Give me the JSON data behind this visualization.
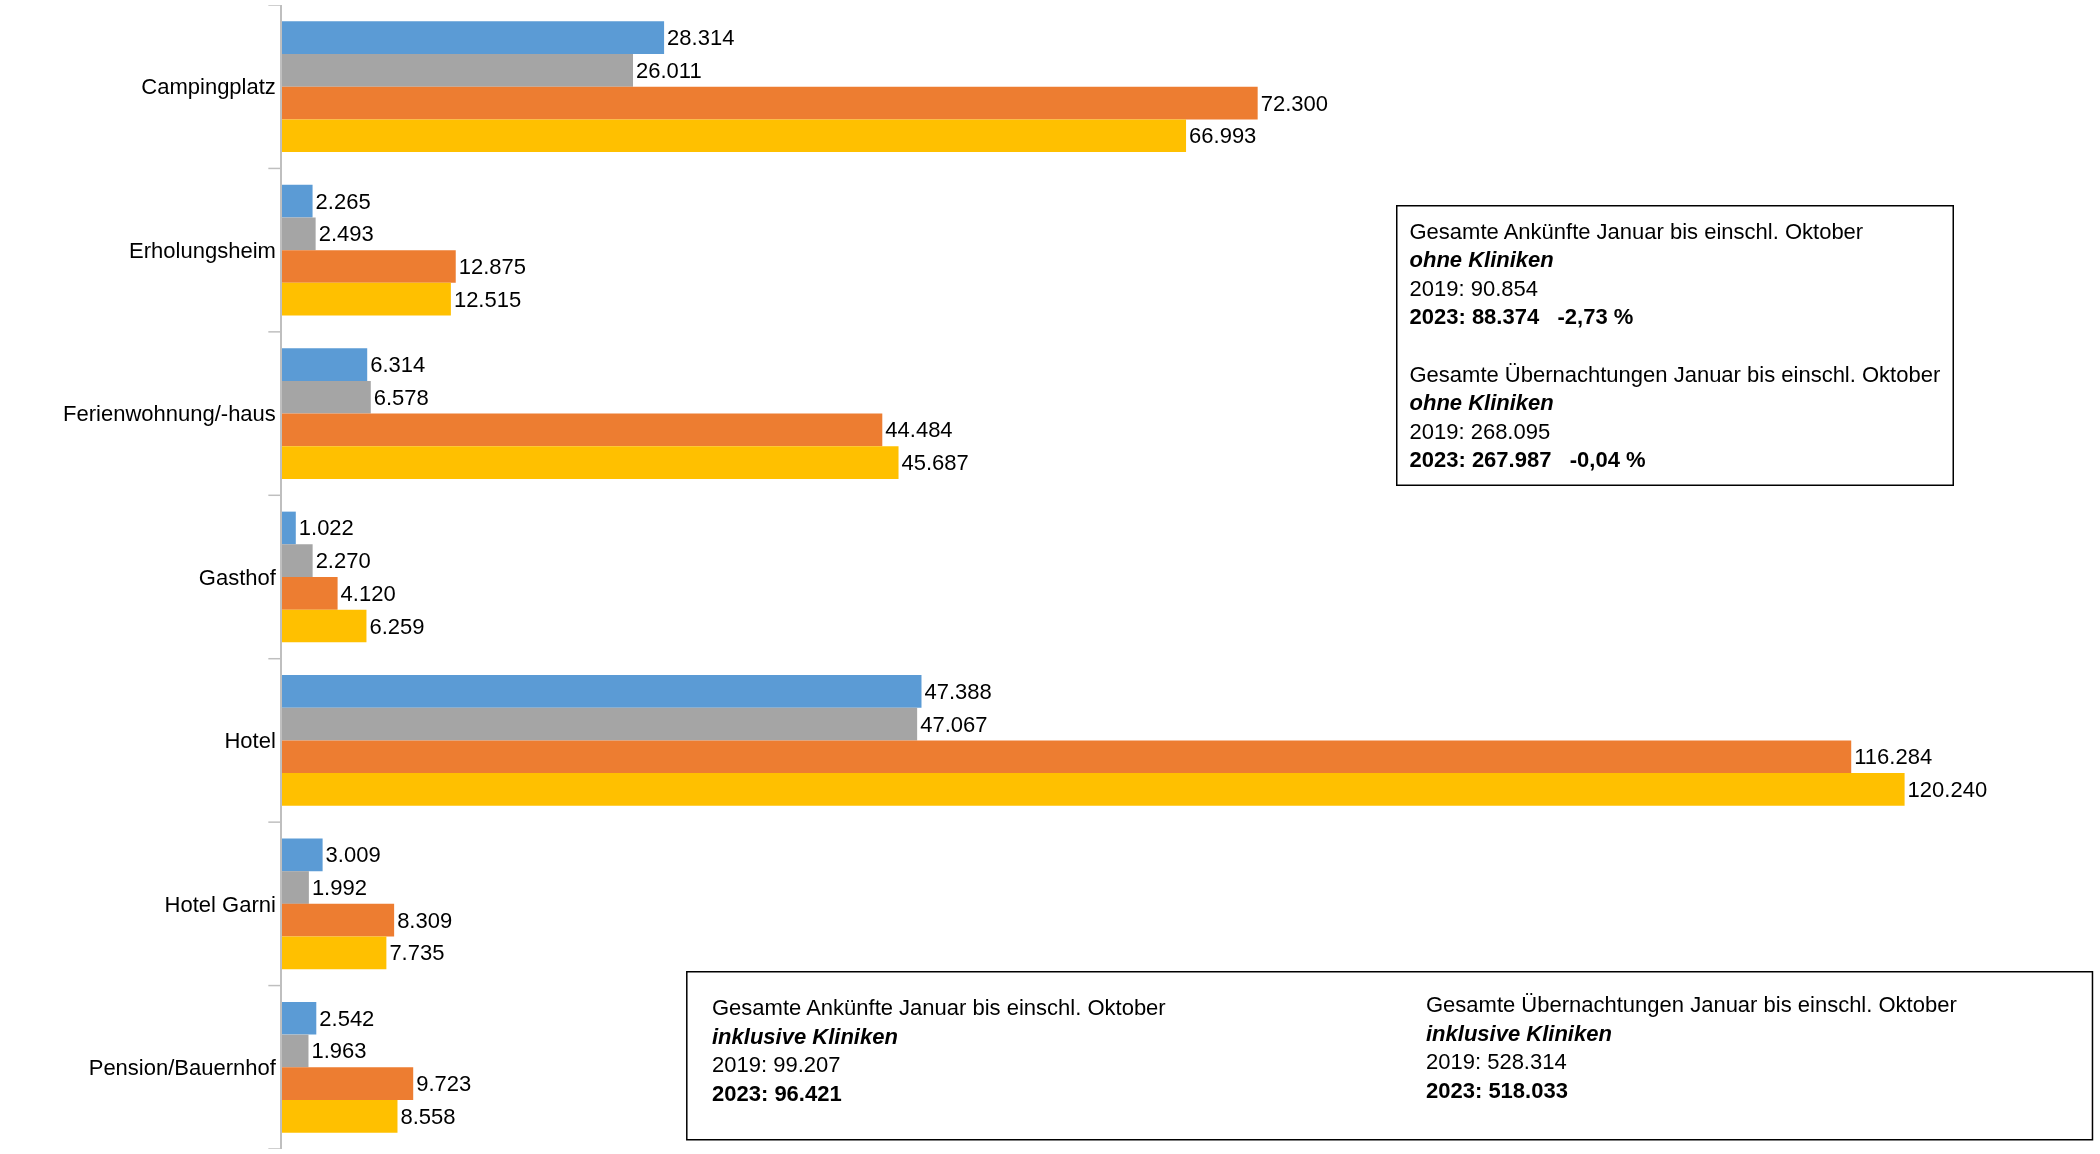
{
  "chart_data": {
    "type": "bar",
    "orientation": "horizontal",
    "tick_labels": "y",
    "categories": [
      "Campingplatz",
      "Erholungsheim",
      "Ferienwohnung/-haus",
      "Gasthof",
      "Hotel",
      "Hotel Garni",
      "Pension/Bauernhof"
    ],
    "series": [
      {
        "color": "#5b9bd5",
        "values": [
          28314,
          2265,
          6314,
          1022,
          47388,
          3009,
          2542
        ],
        "value_labels": [
          "28.314",
          "2.265",
          "6.314",
          "1.022",
          "47.388",
          "3.009",
          "2.542"
        ]
      },
      {
        "color": "#a5a5a5",
        "values": [
          26011,
          2493,
          6578,
          2270,
          47067,
          1992,
          1963
        ],
        "value_labels": [
          "26.011",
          "2.493",
          "6.578",
          "2.270",
          "47.067",
          "1.992",
          "1.963"
        ]
      },
      {
        "color": "#ed7d31",
        "values": [
          72300,
          12875,
          44484,
          4120,
          116284,
          8309,
          9723
        ],
        "value_labels": [
          "72.300",
          "12.875",
          "44.484",
          "4.120",
          "116.284",
          "8.309",
          "9.723"
        ]
      },
      {
        "color": "#ffc000",
        "values": [
          66993,
          12515,
          45687,
          6259,
          120240,
          7735,
          8558
        ],
        "value_labels": [
          "66.993",
          "12.515",
          "45.687",
          "6.259",
          "120.240",
          "7.735",
          "8.558"
        ]
      }
    ],
    "annotations": [
      "Gesamte Ankünfte Januar bis einschl. Oktober\nohne Kliniken\n2019: 90.854\n2023: 88.374   -2,73 %\n\nGesamte Übernachtungen Januar bis einschl. Oktober\nohne Kliniken\n2019: 268.095\n2023: 267.987   -0,04 %",
      "Gesamte Ankünfte Januar bis einschl. Oktober\ninklusive Kliniken\n2019: 99.207\n2023: 96.421",
      "Gesamte Übernachtungen Januar bis einschl. Oktober\ninklusive Kliniken\n2019: 528.314\n2023: 518.033"
    ]
  }
}
